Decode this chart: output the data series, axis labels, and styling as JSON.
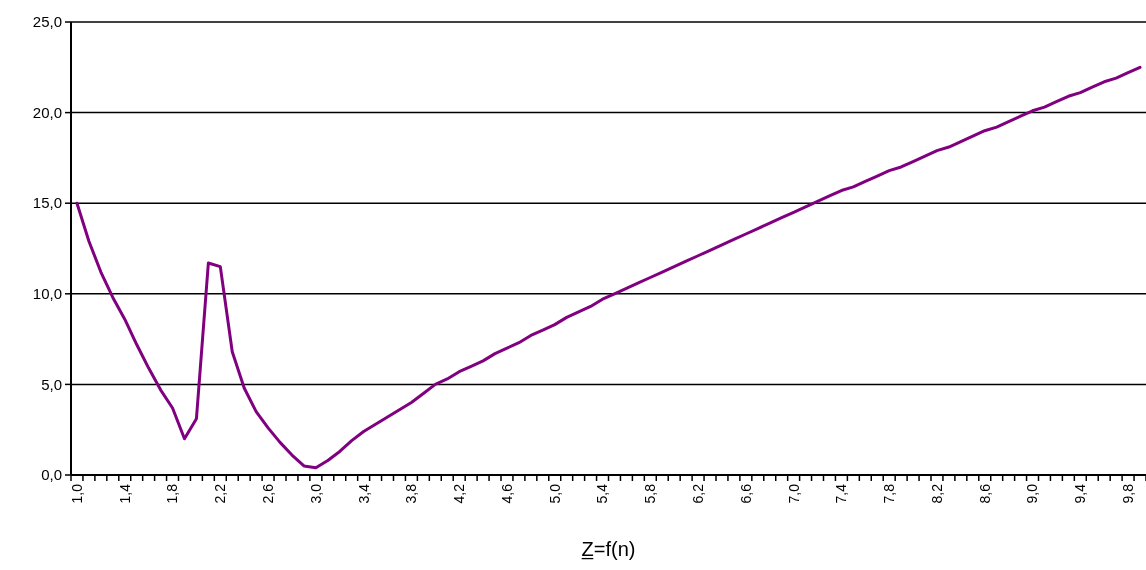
{
  "chart_data": {
    "type": "line",
    "xlabel": "Z̲=f(n)",
    "categories": [
      "1,0",
      null,
      null,
      null,
      "1,4",
      null,
      null,
      null,
      "1,8",
      null,
      null,
      null,
      "2,2",
      null,
      null,
      null,
      "2,6",
      null,
      null,
      null,
      "3,0",
      null,
      null,
      null,
      "3,4",
      null,
      null,
      null,
      "3,8",
      null,
      null,
      null,
      "4,2",
      null,
      null,
      null,
      "4,6",
      null,
      null,
      null,
      "5,0",
      null,
      null,
      null,
      "5,4",
      null,
      null,
      null,
      "5,8",
      null,
      null,
      null,
      "6,2",
      null,
      null,
      null,
      "6,6",
      null,
      null,
      null,
      "7,0",
      null,
      null,
      null,
      "7,4",
      null,
      null,
      null,
      "7,8",
      null,
      null,
      null,
      "8,2",
      null,
      null,
      null,
      "8,6",
      null,
      null,
      null,
      "9,0",
      null,
      null,
      null,
      "9,4",
      null,
      null,
      null,
      "9,8",
      null
    ],
    "series": [
      {
        "color": "#800080",
        "values": [
          15.0,
          12.9,
          11.2,
          9.8,
          8.6,
          7.2,
          5.9,
          4.7,
          3.7,
          2.0,
          3.1,
          11.7,
          11.5,
          6.8,
          4.8,
          3.5,
          2.6,
          1.8,
          1.1,
          0.5,
          0.4,
          0.8,
          1.3,
          1.9,
          2.4,
          2.8,
          3.2,
          3.6,
          4.0,
          4.5,
          5.0,
          5.3,
          5.7,
          6.0,
          6.3,
          6.7,
          7.0,
          7.3,
          7.7,
          8.0,
          8.3,
          8.7,
          9.0,
          9.3,
          9.7,
          10.0,
          10.3,
          10.6,
          10.9,
          11.2,
          11.5,
          11.8,
          12.1,
          12.4,
          12.7,
          13.0,
          13.3,
          13.6,
          13.9,
          14.2,
          14.5,
          14.8,
          15.1,
          15.4,
          15.7,
          15.9,
          16.2,
          16.5,
          16.8,
          17.0,
          17.3,
          17.6,
          17.9,
          18.1,
          18.4,
          18.7,
          19.0,
          19.2,
          19.5,
          19.8,
          20.1,
          20.3,
          20.6,
          20.9,
          21.1,
          21.4,
          21.7,
          21.9,
          22.2,
          22.5
        ]
      }
    ],
    "ylim": [
      0,
      25
    ],
    "yticks": [
      {
        "value": 0,
        "label": "0,0"
      },
      {
        "value": 5,
        "label": "5,0"
      },
      {
        "value": 10,
        "label": "10,0"
      },
      {
        "value": 15,
        "label": "15,0"
      },
      {
        "value": 20,
        "label": "20,0"
      },
      {
        "value": 25,
        "label": "25,0"
      }
    ],
    "grid": "y",
    "marker": "none",
    "line_style": "solid"
  }
}
